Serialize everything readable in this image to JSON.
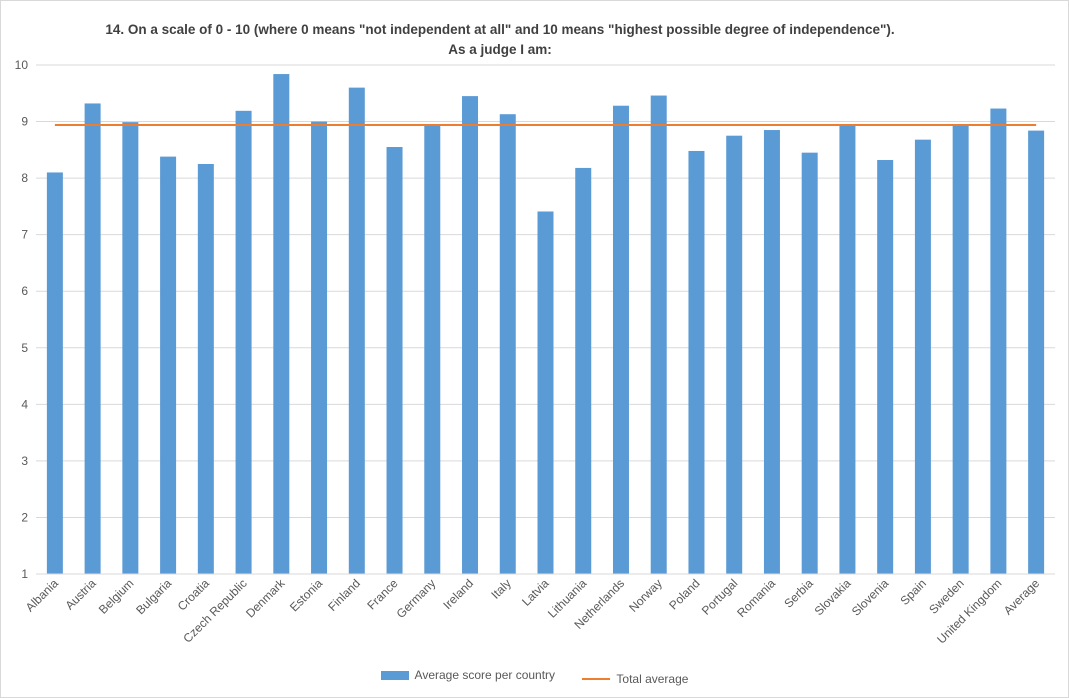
{
  "chart_data": {
    "type": "bar",
    "title_line1": "14. On a scale of 0 - 10 (where 0 means \"not independent at all\" and 10 means \"highest possible degree of independence\").",
    "title_line2": "As a judge I am:",
    "categories": [
      "Albania",
      "Austria",
      "Belgium",
      "Bulgaria",
      "Croatia",
      "Czech Republic",
      "Denmark",
      "Estonia",
      "Finland",
      "France",
      "Germany",
      "Ireland",
      "Italy",
      "Latvia",
      "Lithuania",
      "Netherlands",
      "Norway",
      "Poland",
      "Portugal",
      "Romania",
      "Serbia",
      "Slovakia",
      "Slovenia",
      "Spain",
      "Sweden",
      "United Kingdom",
      "Average"
    ],
    "series": [
      {
        "name": "Average score per country",
        "kind": "bar",
        "color": "#5b9bd5",
        "values": [
          8.1,
          9.32,
          8.99,
          8.38,
          8.25,
          9.19,
          9.84,
          9.0,
          9.6,
          8.55,
          8.93,
          9.45,
          9.13,
          7.41,
          8.18,
          9.28,
          9.46,
          8.48,
          8.75,
          8.85,
          8.45,
          8.94,
          8.32,
          8.68,
          8.94,
          9.23,
          8.84
        ]
      },
      {
        "name": "Total average",
        "kind": "line",
        "color": "#ed7d31",
        "value": 8.94
      }
    ],
    "y_ticks": [
      1,
      2,
      3,
      4,
      5,
      6,
      7,
      8,
      9,
      10
    ],
    "ylim": [
      1,
      10
    ],
    "grid": true,
    "legend_position": "bottom"
  }
}
